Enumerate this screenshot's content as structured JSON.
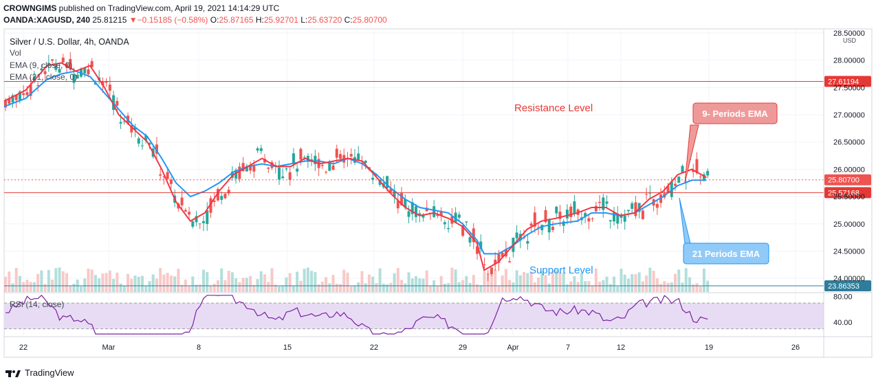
{
  "header": {
    "publisher": "CROWNGIMS",
    "published_text": "published on TradingView.com, April 19, 2021 14:14:29 UTC",
    "symbol": "OANDA:XAGUSD, 240",
    "last": "25.81215",
    "change_arrow": "▼",
    "change": "−0.15185 (−0.58%)",
    "o_label": "O:",
    "o_value": "25.87165",
    "h_label": "H:",
    "h_value": "25.92701",
    "l_label": "L:",
    "l_value": "25.63720",
    "c_label": "C:",
    "c_value": "25.80700"
  },
  "legend": {
    "title": "Silver / U.S. Dollar, 4h, OANDA",
    "vol": "Vol",
    "ema9": "EMA (9, close, 0)",
    "ema21": "EMA (21, close, 0)",
    "rsi": "RSI (14, close)"
  },
  "colors": {
    "up": "#26a69a",
    "down": "#ef5350",
    "ema9": "#f23645",
    "ema21": "#2196f3",
    "resistance": "#e53935",
    "support": "#2e7d9a",
    "rsi": "#7b1fa2",
    "rsi_band": "#e8dcf5"
  },
  "chart_data": {
    "type": "candlestick",
    "axis_currency": "USD",
    "y_ticks": [
      "28.50000",
      "28.00000",
      "27.50000",
      "27.00000",
      "26.50000",
      "26.00000",
      "25.50000",
      "25.00000",
      "24.50000",
      "24.00000"
    ],
    "ylim": [
      23.75,
      28.55
    ],
    "x_ticks": [
      "22",
      "Mar",
      "8",
      "15",
      "22",
      "29",
      "Apr",
      "7",
      "12",
      "19",
      "26"
    ],
    "price_tags": [
      {
        "value": 27.61194,
        "text": "27.61194",
        "color": "#e53935"
      },
      {
        "value": 25.807,
        "text": "25.80700",
        "color": "#ef5350"
      },
      {
        "value": 25.57168,
        "text": "25.57168",
        "color": "#e53935"
      },
      {
        "value": 23.86353,
        "text": "23.86353",
        "color": "#2e7d9a"
      }
    ],
    "annotations": {
      "resistance": "Resistance Level",
      "support": "Support Level",
      "ema9_callout": "9- Periods EMA",
      "ema21_callout": "21 Periods EMA"
    },
    "ema9_path": [
      [
        0,
        27.25
      ],
      [
        0.03,
        27.45
      ],
      [
        0.06,
        27.9
      ],
      [
        0.08,
        27.95
      ],
      [
        0.1,
        27.8
      ],
      [
        0.12,
        27.9
      ],
      [
        0.14,
        27.5
      ],
      [
        0.16,
        27.0
      ],
      [
        0.18,
        26.75
      ],
      [
        0.2,
        26.5
      ],
      [
        0.22,
        26.0
      ],
      [
        0.24,
        25.4
      ],
      [
        0.26,
        25.05
      ],
      [
        0.28,
        25.2
      ],
      [
        0.3,
        25.6
      ],
      [
        0.32,
        25.9
      ],
      [
        0.34,
        26.05
      ],
      [
        0.36,
        26.2
      ],
      [
        0.38,
        26.05
      ],
      [
        0.4,
        26.05
      ],
      [
        0.42,
        26.2
      ],
      [
        0.44,
        26.1
      ],
      [
        0.46,
        26.15
      ],
      [
        0.48,
        26.2
      ],
      [
        0.5,
        26.15
      ],
      [
        0.52,
        25.85
      ],
      [
        0.54,
        25.55
      ],
      [
        0.56,
        25.3
      ],
      [
        0.58,
        25.15
      ],
      [
        0.6,
        25.2
      ],
      [
        0.62,
        25.1
      ],
      [
        0.64,
        24.95
      ],
      [
        0.66,
        24.65
      ],
      [
        0.67,
        24.15
      ],
      [
        0.69,
        24.3
      ],
      [
        0.71,
        24.6
      ],
      [
        0.73,
        24.9
      ],
      [
        0.75,
        25.05
      ],
      [
        0.77,
        25.1
      ],
      [
        0.8,
        25.2
      ],
      [
        0.82,
        25.3
      ],
      [
        0.84,
        25.3
      ],
      [
        0.86,
        25.15
      ],
      [
        0.88,
        25.2
      ],
      [
        0.9,
        25.45
      ],
      [
        0.92,
        25.6
      ],
      [
        0.94,
        25.9
      ],
      [
        0.96,
        26.0
      ],
      [
        0.98,
        25.85
      ]
    ],
    "ema21_path": [
      [
        0,
        27.15
      ],
      [
        0.03,
        27.3
      ],
      [
        0.06,
        27.65
      ],
      [
        0.08,
        27.75
      ],
      [
        0.1,
        27.8
      ],
      [
        0.12,
        27.7
      ],
      [
        0.14,
        27.4
      ],
      [
        0.16,
        27.1
      ],
      [
        0.18,
        26.8
      ],
      [
        0.2,
        26.6
      ],
      [
        0.22,
        26.2
      ],
      [
        0.24,
        25.75
      ],
      [
        0.26,
        25.5
      ],
      [
        0.28,
        25.6
      ],
      [
        0.3,
        25.75
      ],
      [
        0.32,
        25.95
      ],
      [
        0.34,
        26.05
      ],
      [
        0.36,
        26.1
      ],
      [
        0.38,
        26.05
      ],
      [
        0.4,
        26.1
      ],
      [
        0.42,
        26.15
      ],
      [
        0.44,
        26.15
      ],
      [
        0.46,
        26.1
      ],
      [
        0.48,
        26.2
      ],
      [
        0.5,
        26.1
      ],
      [
        0.52,
        25.9
      ],
      [
        0.54,
        25.65
      ],
      [
        0.56,
        25.45
      ],
      [
        0.58,
        25.3
      ],
      [
        0.6,
        25.25
      ],
      [
        0.62,
        25.2
      ],
      [
        0.64,
        25.0
      ],
      [
        0.66,
        24.7
      ],
      [
        0.67,
        24.45
      ],
      [
        0.69,
        24.45
      ],
      [
        0.71,
        24.6
      ],
      [
        0.73,
        24.8
      ],
      [
        0.75,
        24.95
      ],
      [
        0.77,
        25.0
      ],
      [
        0.8,
        25.05
      ],
      [
        0.82,
        25.2
      ],
      [
        0.84,
        25.2
      ],
      [
        0.86,
        25.15
      ],
      [
        0.88,
        25.2
      ],
      [
        0.9,
        25.35
      ],
      [
        0.92,
        25.5
      ],
      [
        0.94,
        25.7
      ],
      [
        0.96,
        25.8
      ],
      [
        0.98,
        25.8
      ]
    ],
    "rsi_ticks": [
      "80.00",
      "40.00"
    ],
    "rsi_ylim": [
      20,
      85
    ],
    "rsi_levels": [
      70,
      30
    ]
  }
}
